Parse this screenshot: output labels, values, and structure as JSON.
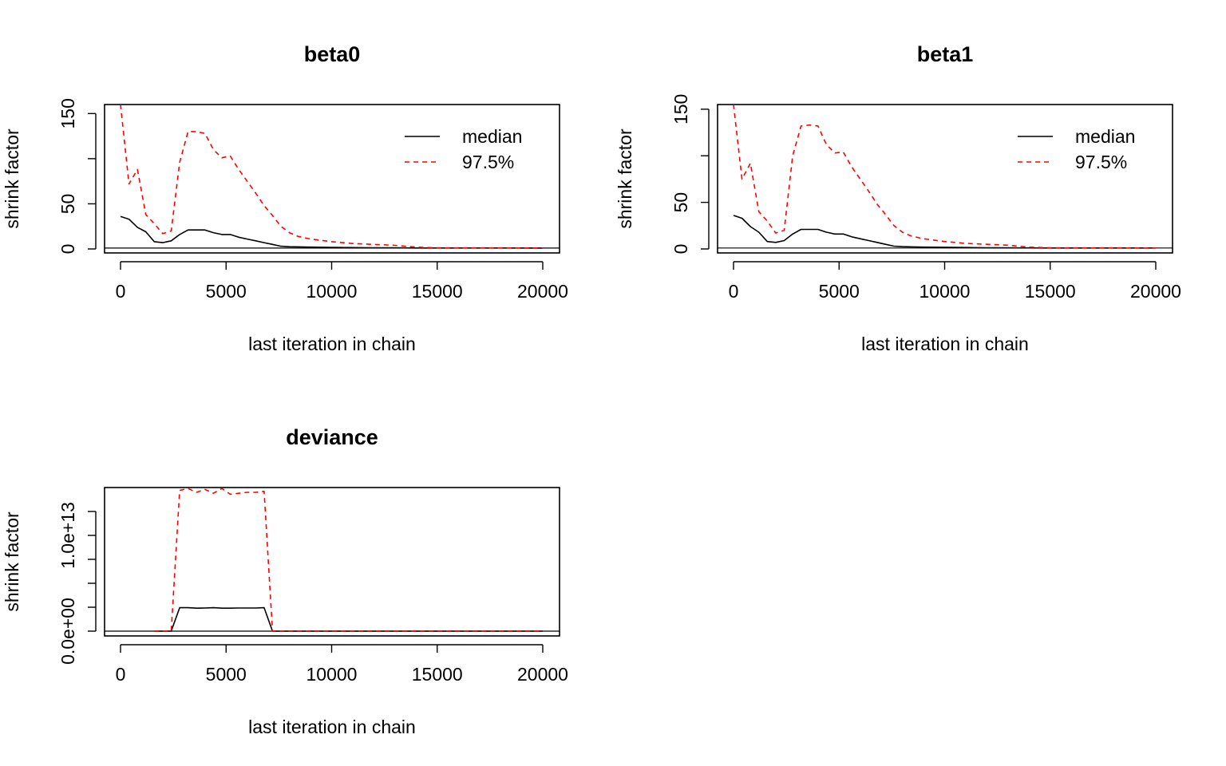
{
  "chart_data": [
    {
      "type": "line",
      "title": "beta0",
      "xlabel": "last iteration in chain",
      "ylabel": "shrink factor",
      "xlim": [
        0,
        20000
      ],
      "ylim": [
        0,
        160
      ],
      "xticks": [
        0,
        5000,
        10000,
        15000,
        20000
      ],
      "xtick_labels": [
        "0",
        "5000",
        "10000",
        "15000",
        "20000"
      ],
      "yticks": [
        0,
        50,
        100,
        150
      ],
      "ytick_labels": [
        "0",
        "50",
        "",
        "150"
      ],
      "legend": {
        "position": "top-right",
        "entries": [
          "median",
          "97.5%"
        ]
      },
      "series": [
        {
          "name": "median",
          "style": "solid",
          "color": "#000000",
          "x": [
            0,
            400,
            800,
            1200,
            1600,
            2000,
            2400,
            2800,
            3200,
            3600,
            4000,
            4400,
            4800,
            5200,
            5600,
            6000,
            6400,
            6800,
            7200,
            7600,
            8000,
            9000,
            10000,
            11000,
            12000,
            13000,
            14000,
            15000,
            20000
          ],
          "y": [
            36,
            33,
            24,
            19,
            8,
            7,
            9,
            16,
            21,
            21,
            21,
            18,
            16,
            16,
            13,
            11,
            9,
            7,
            5,
            3,
            2.5,
            2,
            1.8,
            1.5,
            1.3,
            1.2,
            1.1,
            1.05,
            1.01
          ]
        },
        {
          "name": "97.5%",
          "style": "dashed",
          "color": "#ff0000",
          "x": [
            0,
            400,
            800,
            1200,
            1600,
            2000,
            2400,
            2800,
            3200,
            3600,
            4000,
            4400,
            4800,
            5200,
            5600,
            6000,
            6400,
            6800,
            7200,
            7600,
            8000,
            8400,
            9000,
            10000,
            11000,
            12000,
            13000,
            14000,
            15000,
            20000
          ],
          "y": [
            160,
            72,
            88,
            38,
            28,
            17,
            20,
            96,
            130,
            130,
            128,
            110,
            101,
            103,
            88,
            75,
            62,
            48,
            37,
            25,
            18,
            14,
            11,
            8,
            6,
            5,
            4,
            2,
            1.2,
            1.05
          ]
        }
      ]
    },
    {
      "type": "line",
      "title": "beta1",
      "xlabel": "last iteration in chain",
      "ylabel": "shrink factor",
      "xlim": [
        0,
        20000
      ],
      "ylim": [
        0,
        155
      ],
      "xticks": [
        0,
        5000,
        10000,
        15000,
        20000
      ],
      "xtick_labels": [
        "0",
        "5000",
        "10000",
        "15000",
        "20000"
      ],
      "yticks": [
        0,
        50,
        100,
        150
      ],
      "ytick_labels": [
        "0",
        "50",
        "",
        "150"
      ],
      "legend": {
        "position": "top-right",
        "entries": [
          "median",
          "97.5%"
        ]
      },
      "series": [
        {
          "name": "median",
          "style": "solid",
          "color": "#000000",
          "x": [
            0,
            400,
            800,
            1200,
            1600,
            2000,
            2400,
            2800,
            3200,
            3600,
            4000,
            4400,
            4800,
            5200,
            5600,
            6000,
            6400,
            6800,
            7200,
            7600,
            8000,
            9000,
            10000,
            11000,
            12000,
            13000,
            14000,
            15000,
            20000
          ],
          "y": [
            36,
            33,
            24,
            18,
            8,
            7,
            9,
            16,
            21,
            21,
            21,
            18,
            16,
            16,
            13,
            11,
            9,
            7,
            5,
            3,
            2.5,
            2,
            1.8,
            1.5,
            1.3,
            1.2,
            1.1,
            1.05,
            1.01
          ]
        },
        {
          "name": "97.5%",
          "style": "dashed",
          "color": "#ff0000",
          "x": [
            0,
            400,
            800,
            1200,
            1600,
            2000,
            2400,
            2800,
            3200,
            3600,
            4000,
            4400,
            4800,
            5200,
            5600,
            6000,
            6400,
            6800,
            7200,
            7600,
            8000,
            8400,
            9000,
            10000,
            11000,
            12000,
            13000,
            14000,
            15000,
            20000
          ],
          "y": [
            155,
            75,
            92,
            40,
            30,
            17,
            20,
            100,
            132,
            133,
            132,
            112,
            103,
            104,
            88,
            75,
            62,
            48,
            37,
            25,
            18,
            14,
            11,
            8,
            6,
            5,
            4,
            2,
            1.2,
            1.05
          ]
        }
      ]
    },
    {
      "type": "line",
      "title": "deviance",
      "xlabel": "last iteration in chain",
      "ylabel": "shrink factor",
      "xlim": [
        0,
        20000
      ],
      "ylim": [
        0,
        15000000000000.0
      ],
      "xticks": [
        0,
        5000,
        10000,
        15000,
        20000
      ],
      "xtick_labels": [
        "0",
        "5000",
        "10000",
        "15000",
        "20000"
      ],
      "yticks": [
        0,
        2500000000000.0,
        5000000000000.0,
        7500000000000.0,
        10000000000000.0,
        12500000000000.0
      ],
      "ytick_labels": [
        "0.0e+00",
        "",
        "",
        "",
        "1.0e+13",
        ""
      ],
      "legend": null,
      "series": [
        {
          "name": "median",
          "style": "solid",
          "color": "#000000",
          "x": [
            1600,
            2000,
            2400,
            2800,
            3200,
            3600,
            4000,
            4400,
            4800,
            5200,
            5600,
            6000,
            6400,
            6800,
            7200,
            7600,
            8000,
            10000,
            15000,
            20000
          ],
          "y": [
            0,
            0,
            0,
            2450000000000.0,
            2450000000000.0,
            2400000000000.0,
            2420000000000.0,
            2450000000000.0,
            2400000000000.0,
            2400000000000.0,
            2420000000000.0,
            2420000000000.0,
            2420000000000.0,
            2450000000000.0,
            0,
            0,
            0,
            0,
            0,
            0
          ]
        },
        {
          "name": "97.5%",
          "style": "dashed",
          "color": "#ff0000",
          "x": [
            1600,
            2000,
            2400,
            2800,
            3200,
            3600,
            4000,
            4400,
            4800,
            5200,
            5600,
            6000,
            6400,
            6800,
            7200,
            7600,
            8000,
            10000,
            15000,
            20000
          ],
          "y": [
            0,
            0,
            0,
            14700000000000.0,
            14900000000000.0,
            14500000000000.0,
            14800000000000.0,
            14400000000000.0,
            14900000000000.0,
            14300000000000.0,
            14400000000000.0,
            14500000000000.0,
            14500000000000.0,
            14600000000000.0,
            0,
            0,
            0,
            0,
            0,
            0
          ]
        }
      ]
    }
  ]
}
